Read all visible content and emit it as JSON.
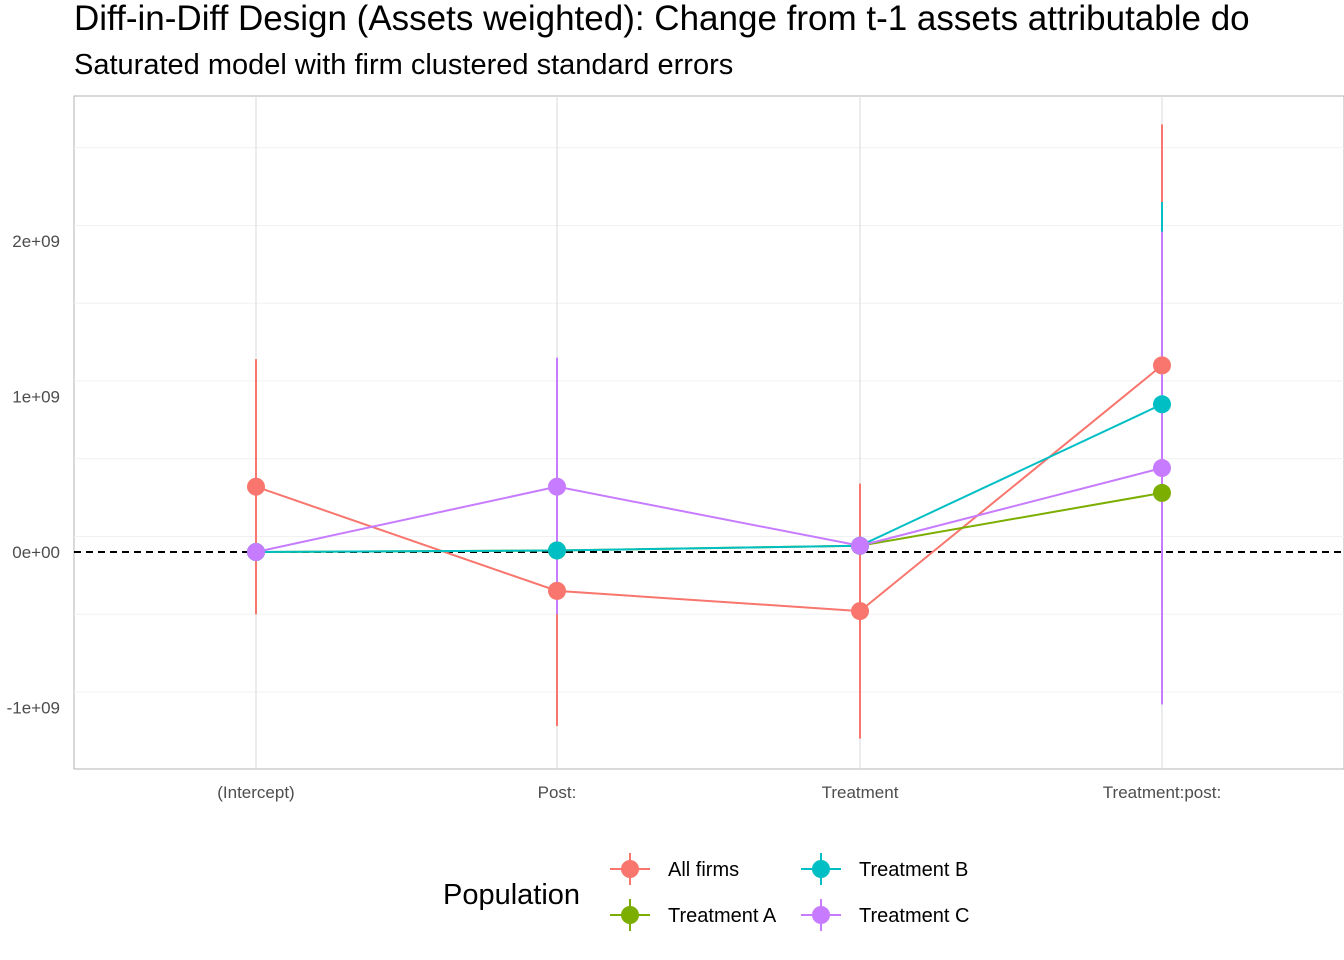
{
  "chart_data": {
    "type": "scatter",
    "title": "Diff-in-Diff Design (Assets weighted): Change from t-1 assets attributable do",
    "subtitle": "Saturated model with firm clustered standard errors",
    "xlabel": "",
    "ylabel": "",
    "categories": [
      "(Intercept)",
      "Post:",
      "Treatment",
      "Treatment:post:"
    ],
    "ylim": [
      -1400000000.0,
      2900000000.0
    ],
    "yticks": [
      -1000000000.0,
      0,
      1000000000.0,
      2000000000.0
    ],
    "ytick_labels": [
      "-1e+09",
      "0e+00",
      "1e+09",
      "2e+09"
    ],
    "reference_line": 0,
    "grid": true,
    "legend": {
      "title": "Population",
      "placement": "bottom"
    },
    "series": [
      {
        "name": "All firms",
        "color": "#F8766D",
        "values": [
          420000000.0,
          -250000000.0,
          -380000000.0,
          1200000000.0
        ],
        "lower": [
          -400000000.0,
          -1120000000.0,
          -1200000000.0,
          -350000000.0
        ],
        "upper": [
          1240000000.0,
          620000000.0,
          440000000.0,
          2750000000.0
        ]
      },
      {
        "name": "Treatment A",
        "color": "#7CAE00",
        "values": [
          0,
          10000000.0,
          40000000.0,
          380000000.0
        ],
        "lower": [
          -10000000.0,
          -10000000.0,
          0,
          320000000.0
        ],
        "upper": [
          10000000.0,
          30000000.0,
          80000000.0,
          440000000.0
        ]
      },
      {
        "name": "Treatment B",
        "color": "#00BFC4",
        "values": [
          0,
          10000000.0,
          40000000.0,
          950000000.0
        ],
        "lower": [
          -10000000.0,
          -10000000.0,
          0,
          -320000000.0
        ],
        "upper": [
          10000000.0,
          30000000.0,
          80000000.0,
          2250000000.0
        ]
      },
      {
        "name": "Treatment C",
        "color": "#C77CFF",
        "values": [
          0,
          420000000.0,
          40000000.0,
          540000000.0
        ],
        "lower": [
          -10000000.0,
          -400000000.0,
          0,
          -980000000.0
        ],
        "upper": [
          10000000.0,
          1250000000.0,
          80000000.0,
          2060000000.0
        ]
      }
    ]
  }
}
